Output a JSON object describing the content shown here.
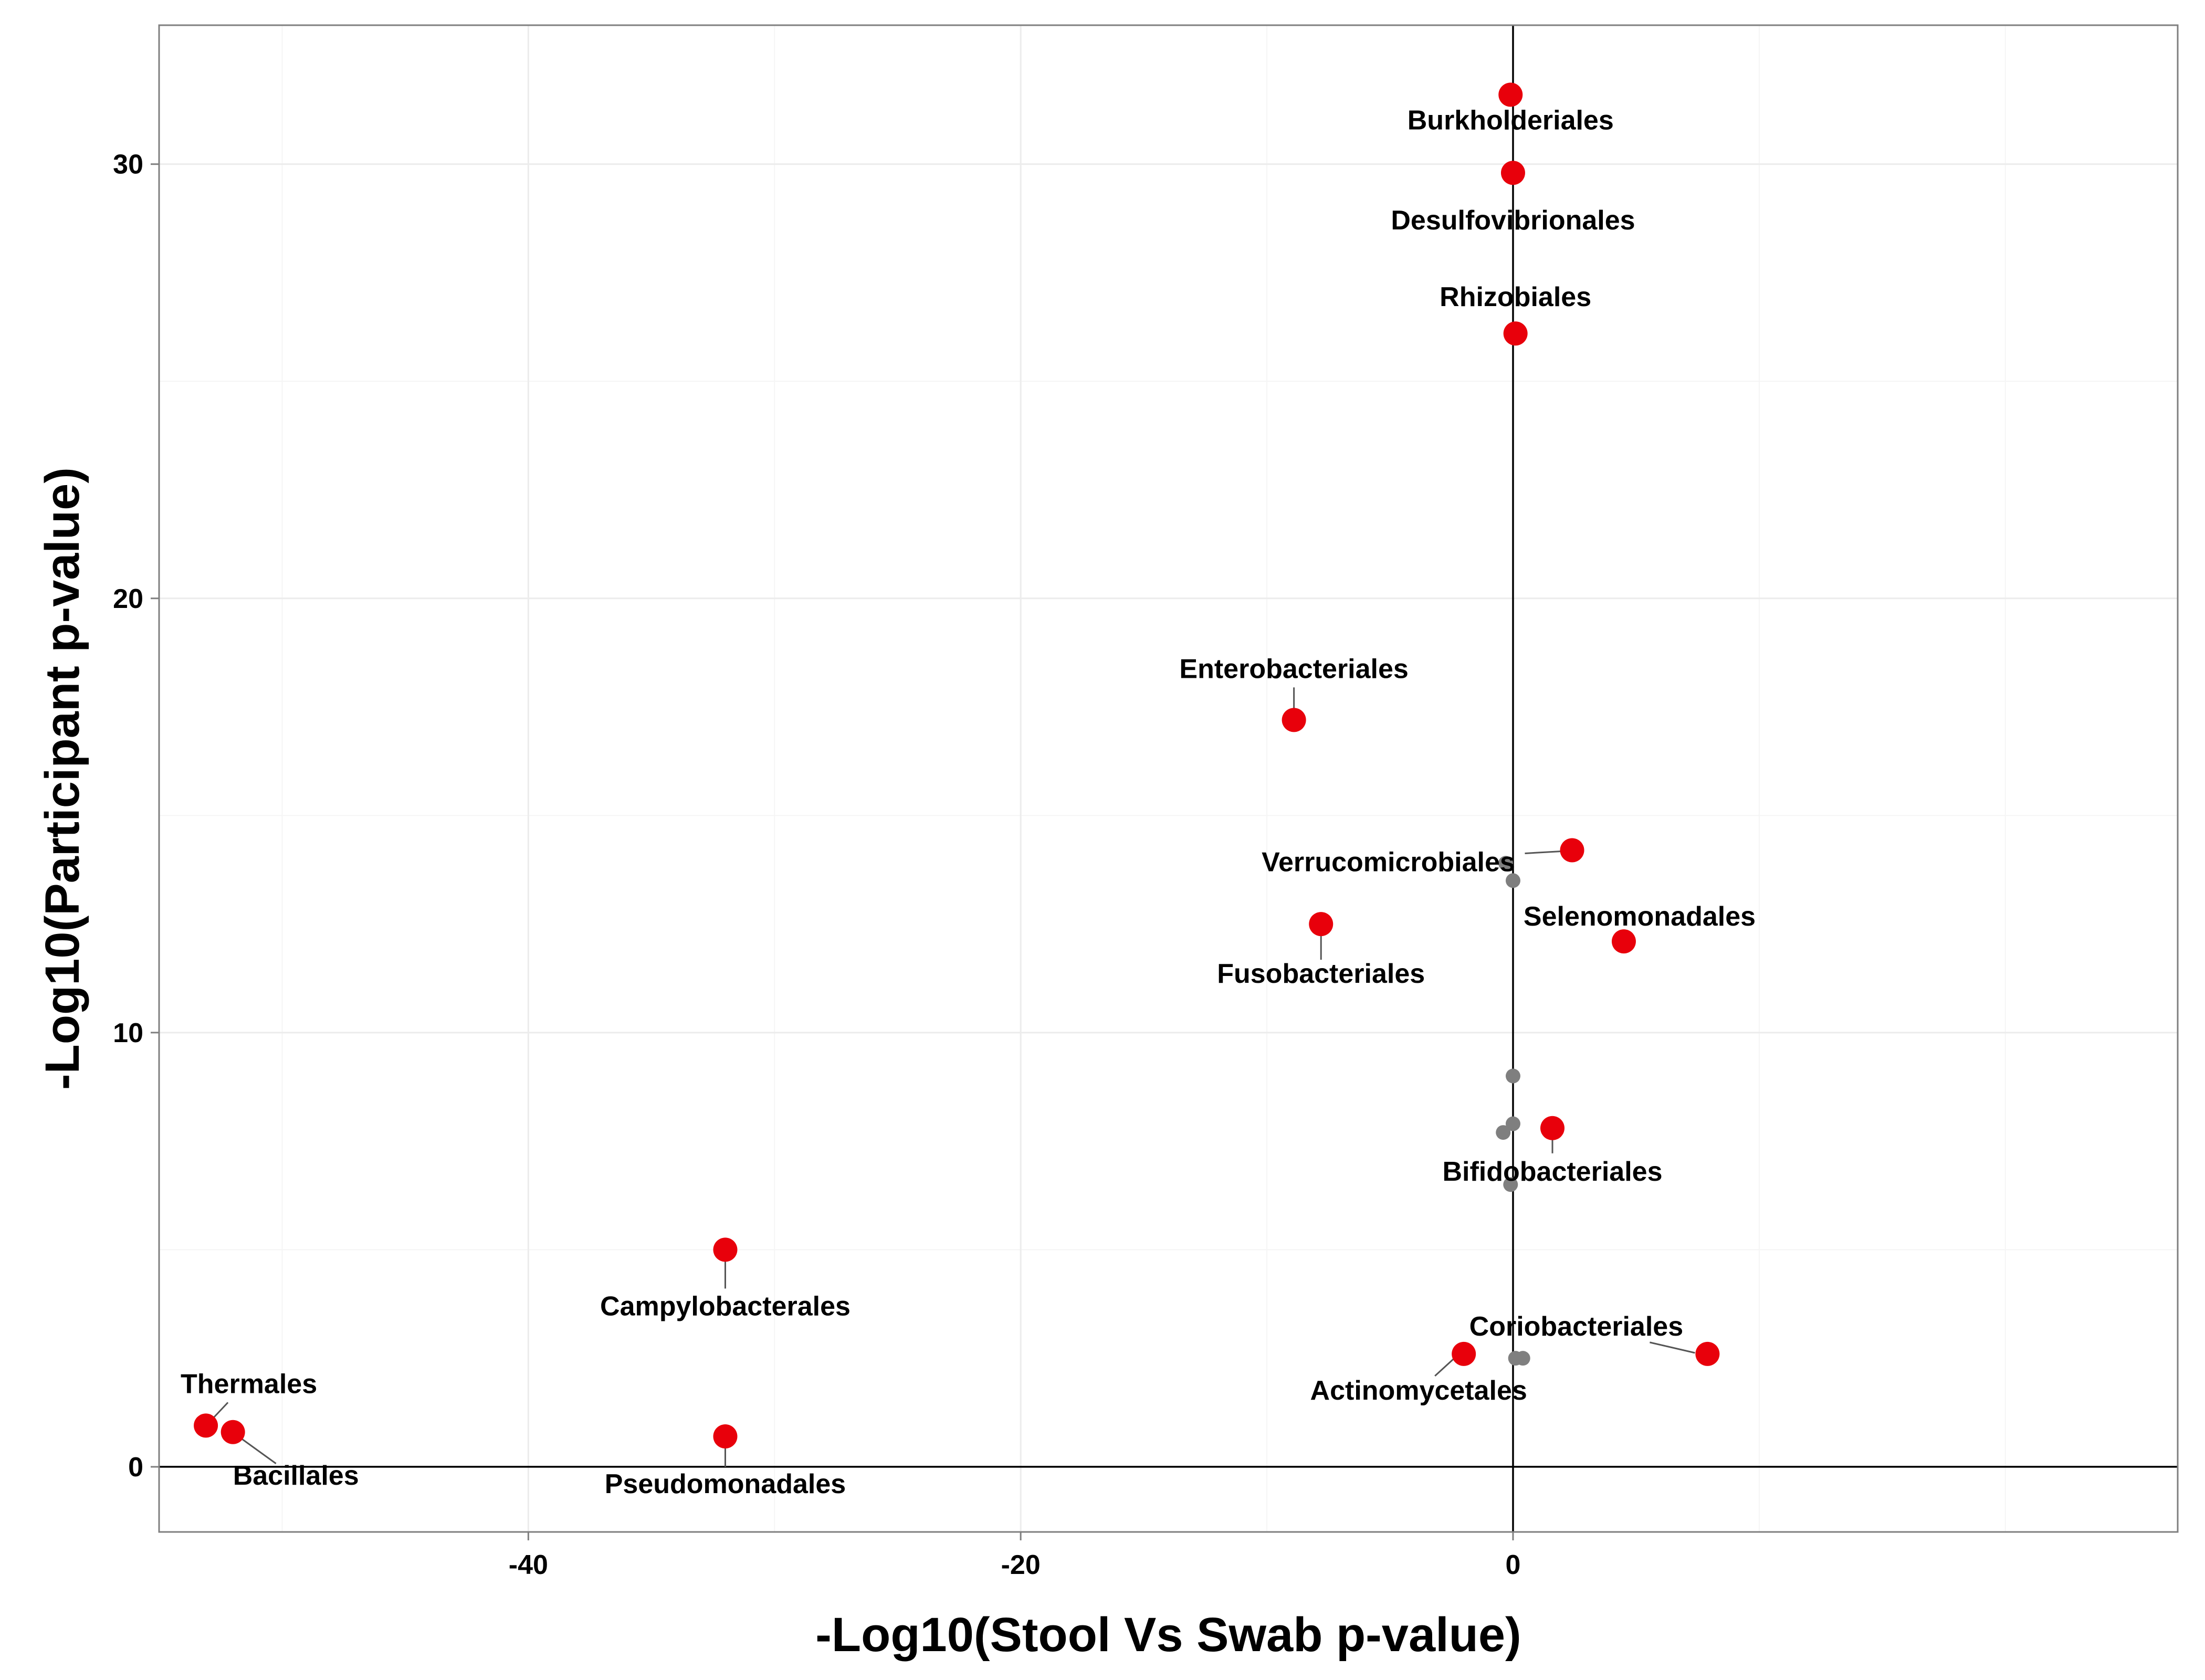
{
  "chart_data": {
    "type": "scatter",
    "xlabel": "-Log10(Stool Vs Swab p-value)",
    "ylabel": "-Log10(Participant p-value)",
    "xlim": [
      -55,
      27
    ],
    "ylim": [
      -1.5,
      33.2
    ],
    "xticks": [
      -40,
      -20,
      0
    ],
    "xtick_labels": [
      "-40",
      "-20",
      "0"
    ],
    "yticks": [
      0,
      10,
      20,
      30
    ],
    "ytick_labels": [
      "0",
      "10",
      "20",
      "30"
    ],
    "grid": true,
    "reference_lines": {
      "x": 0,
      "y": 0
    },
    "colors": {
      "significant": "#e8000b",
      "other": "#7f7f7f"
    },
    "series": [
      {
        "points": [
          {
            "label": "Burkholderiales",
            "x": -0.1,
            "y": 31.6
          },
          {
            "label": "Desulfovibrionales",
            "x": 0.0,
            "y": 29.8
          },
          {
            "label": "Rhizobiales",
            "x": 0.1,
            "y": 26.1
          },
          {
            "label": "Enterobacteriales",
            "x": -8.9,
            "y": 17.2
          },
          {
            "label": "Verrucomicrobiales",
            "x": 2.4,
            "y": 14.2
          },
          {
            "label": "Fusobacteriales",
            "x": -7.8,
            "y": 12.5
          },
          {
            "label": "Selenomonadales",
            "x": 4.5,
            "y": 12.1
          },
          {
            "label": "Bifidobacteriales",
            "x": 1.6,
            "y": 7.8
          },
          {
            "label": "Campylobacterales",
            "x": -32.0,
            "y": 5.0
          },
          {
            "label": "Coriobacteriales",
            "x": 7.9,
            "y": 2.6
          },
          {
            "label": "Actinomycetales",
            "x": -2.0,
            "y": 2.6
          },
          {
            "label": "Thermales",
            "x": -53.1,
            "y": 0.95
          },
          {
            "label": "Bacillales",
            "x": -52.0,
            "y": 0.8
          },
          {
            "label": "Pseudomonadales",
            "x": -32.0,
            "y": 0.7
          }
        ]
      },
      {
        "points": [
          {
            "x": -0.3,
            "y": 13.9
          },
          {
            "x": 0.0,
            "y": 13.5
          },
          {
            "x": 0.0,
            "y": 9.0
          },
          {
            "x": 0.0,
            "y": 7.9
          },
          {
            "x": -0.4,
            "y": 7.7
          },
          {
            "x": -0.1,
            "y": 6.5
          },
          {
            "x": 0.1,
            "y": 2.5
          },
          {
            "x": 0.4,
            "y": 2.5
          }
        ]
      }
    ]
  }
}
